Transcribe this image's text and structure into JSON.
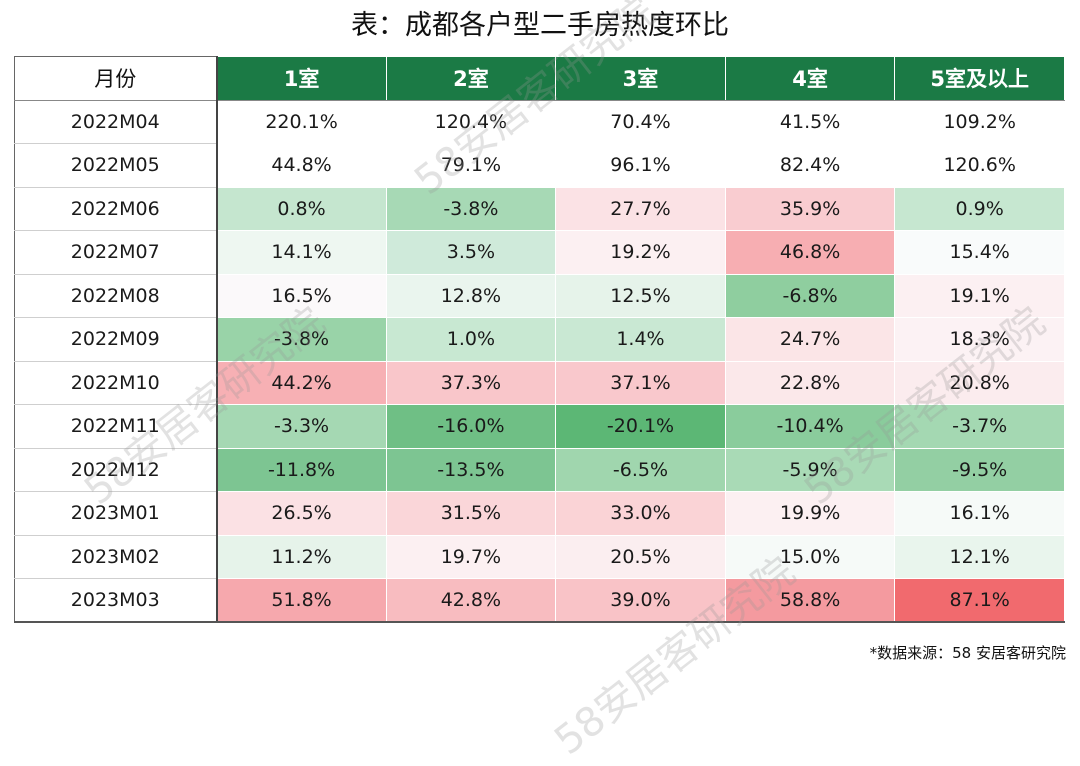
{
  "title": "表：成都各户型二手房热度环比",
  "source": "*数据来源：58 安居客研究院",
  "watermark_text": "58安居客研究院",
  "chart_data": {
    "type": "table",
    "title": "表：成都各户型二手房热度环比",
    "columns": [
      "月份",
      "1室",
      "2室",
      "3室",
      "4室",
      "5室及以上"
    ],
    "rows": [
      {
        "month": "2022M04",
        "values": [
          "220.1%",
          "120.4%",
          "70.4%",
          "41.5%",
          "109.2%"
        ],
        "colors": [
          "#ffffff",
          "#ffffff",
          "#ffffff",
          "#ffffff",
          "#ffffff"
        ]
      },
      {
        "month": "2022M05",
        "values": [
          "44.8%",
          "79.1%",
          "96.1%",
          "82.4%",
          "120.6%"
        ],
        "colors": [
          "#ffffff",
          "#ffffff",
          "#ffffff",
          "#ffffff",
          "#ffffff"
        ]
      },
      {
        "month": "2022M06",
        "values": [
          "0.8%",
          "-3.8%",
          "27.7%",
          "35.9%",
          "0.9%"
        ],
        "colors": [
          "#c5e6cf",
          "#a7d9b5",
          "#fbe2e5",
          "#f9ccd0",
          "#c6e7d0"
        ]
      },
      {
        "month": "2022M07",
        "values": [
          "14.1%",
          "3.5%",
          "19.2%",
          "46.8%",
          "15.4%"
        ],
        "colors": [
          "#eef7f1",
          "#cfeada",
          "#fcf0f2",
          "#f7aeb2",
          "#f9fbfb"
        ]
      },
      {
        "month": "2022M08",
        "values": [
          "16.5%",
          "12.8%",
          "12.5%",
          "-6.8%",
          "19.1%"
        ],
        "colors": [
          "#fbf9fa",
          "#eaf5ee",
          "#e6f3ea",
          "#8fce9f",
          "#fcf0f2"
        ]
      },
      {
        "month": "2022M09",
        "values": [
          "-3.8%",
          "1.0%",
          "1.4%",
          "24.7%",
          "18.3%"
        ],
        "colors": [
          "#99d3a8",
          "#c8e8d2",
          "#c9e8d3",
          "#fbe5e7",
          "#fcf2f4"
        ]
      },
      {
        "month": "2022M10",
        "values": [
          "44.2%",
          "37.3%",
          "37.1%",
          "22.8%",
          "20.8%"
        ],
        "colors": [
          "#f7b0b4",
          "#f9c6ca",
          "#f9c8cc",
          "#fbe8ea",
          "#fbecee"
        ]
      },
      {
        "month": "2022M11",
        "values": [
          "-3.3%",
          "-16.0%",
          "-20.1%",
          "-10.4%",
          "-3.7%"
        ],
        "colors": [
          "#a5d8b3",
          "#6fbf85",
          "#5cb775",
          "#8acc9c",
          "#a4d8b2"
        ]
      },
      {
        "month": "2022M12",
        "values": [
          "-11.8%",
          "-13.5%",
          "-6.5%",
          "-5.9%",
          "-9.5%"
        ],
        "colors": [
          "#7dc592",
          "#7dc592",
          "#a0d6ae",
          "#a9dab6",
          "#93cfa3"
        ]
      },
      {
        "month": "2023M01",
        "values": [
          "26.5%",
          "31.5%",
          "33.0%",
          "19.9%",
          "16.1%"
        ],
        "colors": [
          "#fbe1e4",
          "#fad6d9",
          "#fad3d6",
          "#fcf0f2",
          "#f6faf8"
        ]
      },
      {
        "month": "2023M02",
        "values": [
          "11.2%",
          "19.7%",
          "20.5%",
          "15.0%",
          "12.1%"
        ],
        "colors": [
          "#e6f3ea",
          "#fcf0f2",
          "#fbeef0",
          "#f6faf8",
          "#e9f5ed"
        ]
      },
      {
        "month": "2023M03",
        "values": [
          "51.8%",
          "42.8%",
          "39.0%",
          "58.8%",
          "87.1%"
        ],
        "colors": [
          "#f6a8ad",
          "#f8bcc0",
          "#f9c3c7",
          "#f49a9f",
          "#f16a6e"
        ]
      }
    ]
  }
}
